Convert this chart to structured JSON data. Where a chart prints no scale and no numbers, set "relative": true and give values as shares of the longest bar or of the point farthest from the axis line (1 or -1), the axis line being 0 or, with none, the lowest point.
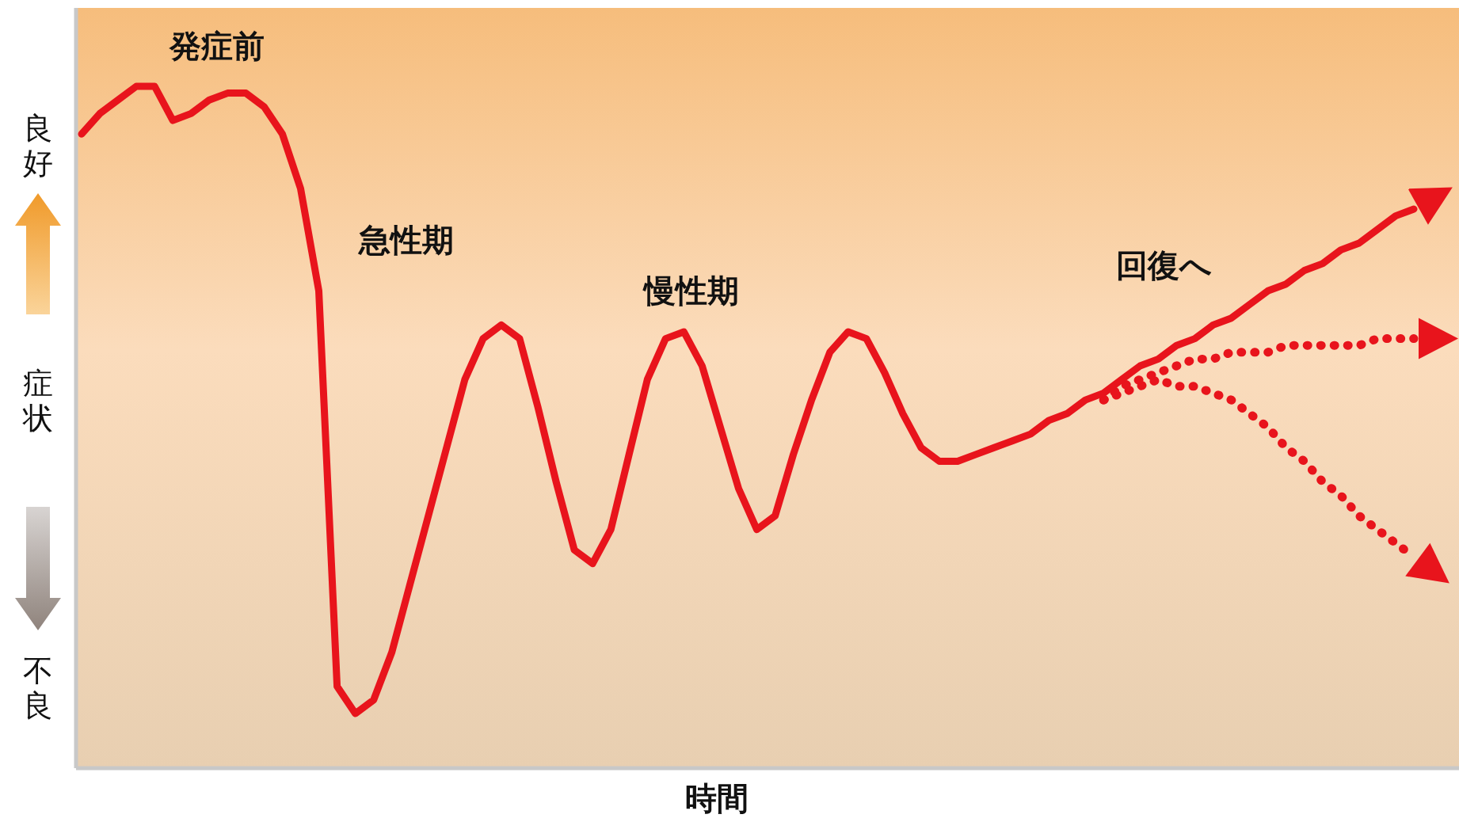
{
  "chart_data": {
    "type": "line",
    "relative": true,
    "xlabel": "時間",
    "ylabel": "症状",
    "annotations": [
      "良好",
      "不良",
      "発症前",
      "急性期",
      "慢性期",
      "回復へ"
    ],
    "categories": [
      null,
      null,
      null,
      null,
      null,
      null,
      null,
      null,
      null,
      null,
      null,
      null,
      null,
      null,
      null,
      null,
      null,
      null,
      null,
      null,
      null,
      null,
      null,
      null,
      null,
      null,
      null,
      null,
      null,
      null,
      null,
      null,
      null,
      null,
      null,
      null,
      null,
      null,
      null,
      null,
      null,
      null,
      null,
      null,
      null,
      null,
      null,
      null,
      null,
      null,
      null,
      null,
      null,
      null,
      null,
      null,
      null,
      null,
      null,
      null,
      null,
      null,
      null,
      null,
      null,
      null,
      null,
      null,
      null,
      null,
      null,
      null,
      null,
      null
    ],
    "series": [
      {
        "color": "#e8141c",
        "line_style": "solid",
        "values": [
          0.93,
          0.96,
          0.98,
          1.0,
          1.0,
          0.95,
          0.96,
          0.98,
          0.99,
          0.99,
          0.97,
          0.93,
          0.85,
          0.7,
          0.12,
          0.08,
          0.1,
          0.17,
          0.27,
          0.37,
          0.47,
          0.57,
          0.63,
          0.65,
          0.63,
          0.53,
          0.42,
          0.32,
          0.3,
          0.35,
          0.46,
          0.57,
          0.63,
          0.64,
          0.59,
          0.5,
          0.41,
          0.35,
          0.37,
          0.46,
          0.54,
          0.61,
          0.64,
          0.63,
          0.58,
          0.52,
          0.47,
          0.45,
          0.45,
          0.46,
          0.47,
          0.48,
          0.49,
          0.51,
          0.52,
          0.54,
          0.55,
          0.57,
          0.59,
          0.6,
          0.62,
          0.63,
          0.65,
          0.66,
          0.68,
          0.7,
          0.71,
          0.73,
          0.74,
          0.76,
          0.77,
          0.79,
          0.81,
          0.82
        ]
      },
      {
        "color": "#e8141c",
        "line_style": "dotted",
        "values": [
          null,
          null,
          null,
          null,
          null,
          null,
          null,
          null,
          null,
          null,
          null,
          null,
          null,
          null,
          null,
          null,
          null,
          null,
          null,
          null,
          null,
          null,
          null,
          null,
          null,
          null,
          null,
          null,
          null,
          null,
          null,
          null,
          null,
          null,
          null,
          null,
          null,
          null,
          null,
          null,
          null,
          null,
          null,
          null,
          null,
          null,
          null,
          null,
          null,
          null,
          null,
          null,
          null,
          null,
          null,
          null,
          0.54,
          0.56,
          0.57,
          0.58,
          0.59,
          0.6,
          0.6,
          0.61,
          0.61,
          0.61,
          0.62,
          0.62,
          0.62,
          0.62,
          0.62,
          0.63,
          0.63,
          0.63
        ]
      },
      {
        "color": "#e8141c",
        "line_style": "dotted",
        "values": [
          null,
          null,
          null,
          null,
          null,
          null,
          null,
          null,
          null,
          null,
          null,
          null,
          null,
          null,
          null,
          null,
          null,
          null,
          null,
          null,
          null,
          null,
          null,
          null,
          null,
          null,
          null,
          null,
          null,
          null,
          null,
          null,
          null,
          null,
          null,
          null,
          null,
          null,
          null,
          null,
          null,
          null,
          null,
          null,
          null,
          null,
          null,
          null,
          null,
          null,
          null,
          null,
          null,
          null,
          null,
          null,
          0.54,
          0.55,
          0.56,
          0.57,
          0.56,
          0.56,
          0.55,
          0.54,
          0.52,
          0.5,
          0.47,
          0.45,
          0.42,
          0.4,
          0.37,
          0.35,
          0.33,
          0.31
        ]
      }
    ]
  }
}
